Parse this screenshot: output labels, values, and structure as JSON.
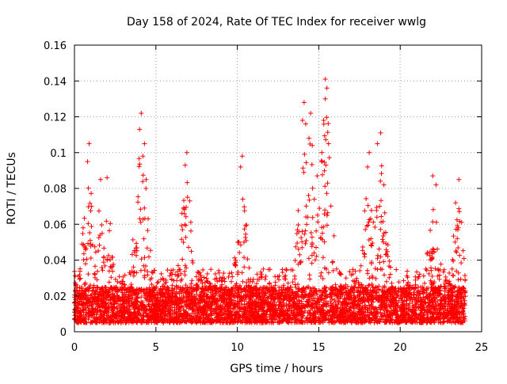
{
  "chart_data": {
    "type": "scatter",
    "title": "Day 158 of 2024, Rate Of TEC Index for receiver wwlg",
    "xlabel": "GPS time / hours",
    "ylabel": "ROTI / TECUs",
    "xlim": [
      0,
      25
    ],
    "ylim": [
      0,
      0.16
    ],
    "grid": true,
    "marker": "+",
    "x_ticks": [
      0,
      5,
      10,
      15,
      20,
      25
    ],
    "x_tick_labels": [
      "0",
      "5",
      "10",
      "15",
      "20",
      "25"
    ],
    "y_ticks": [
      0,
      0.02,
      0.04,
      0.06,
      0.08,
      0.1,
      0.12,
      0.14,
      0.16
    ],
    "y_tick_labels": [
      "0",
      "0.02",
      "0.04",
      "0.06",
      "0.08",
      "0.1",
      "0.12",
      "0.14",
      "0.16"
    ],
    "series": [
      {
        "name": "ROTI",
        "color": "#ff0000",
        "baseline_band": [
          0.005,
          0.025
        ],
        "notable_points": [
          {
            "x": 0.9,
            "y": 0.105
          },
          {
            "x": 0.8,
            "y": 0.095
          },
          {
            "x": 1.6,
            "y": 0.085
          },
          {
            "x": 2.0,
            "y": 0.086
          },
          {
            "x": 4.1,
            "y": 0.122
          },
          {
            "x": 4.0,
            "y": 0.113
          },
          {
            "x": 4.3,
            "y": 0.105
          },
          {
            "x": 4.2,
            "y": 0.098
          },
          {
            "x": 4.4,
            "y": 0.085
          },
          {
            "x": 6.9,
            "y": 0.1
          },
          {
            "x": 6.8,
            "y": 0.093
          },
          {
            "x": 10.3,
            "y": 0.098
          },
          {
            "x": 10.2,
            "y": 0.092
          },
          {
            "x": 14.1,
            "y": 0.128
          },
          {
            "x": 14.0,
            "y": 0.118
          },
          {
            "x": 14.2,
            "y": 0.116
          },
          {
            "x": 14.5,
            "y": 0.122
          },
          {
            "x": 14.4,
            "y": 0.108
          },
          {
            "x": 14.6,
            "y": 0.104
          },
          {
            "x": 15.4,
            "y": 0.141
          },
          {
            "x": 15.5,
            "y": 0.136
          },
          {
            "x": 15.4,
            "y": 0.13
          },
          {
            "x": 15.3,
            "y": 0.118
          },
          {
            "x": 15.6,
            "y": 0.105
          },
          {
            "x": 15.2,
            "y": 0.095
          },
          {
            "x": 14.9,
            "y": 0.087
          },
          {
            "x": 18.1,
            "y": 0.1
          },
          {
            "x": 18.0,
            "y": 0.092
          },
          {
            "x": 18.8,
            "y": 0.111
          },
          {
            "x": 18.6,
            "y": 0.105
          },
          {
            "x": 19.0,
            "y": 0.082
          },
          {
            "x": 22.0,
            "y": 0.087
          },
          {
            "x": 22.2,
            "y": 0.082
          },
          {
            "x": 23.6,
            "y": 0.085
          },
          {
            "x": 23.4,
            "y": 0.072
          }
        ]
      }
    ]
  }
}
